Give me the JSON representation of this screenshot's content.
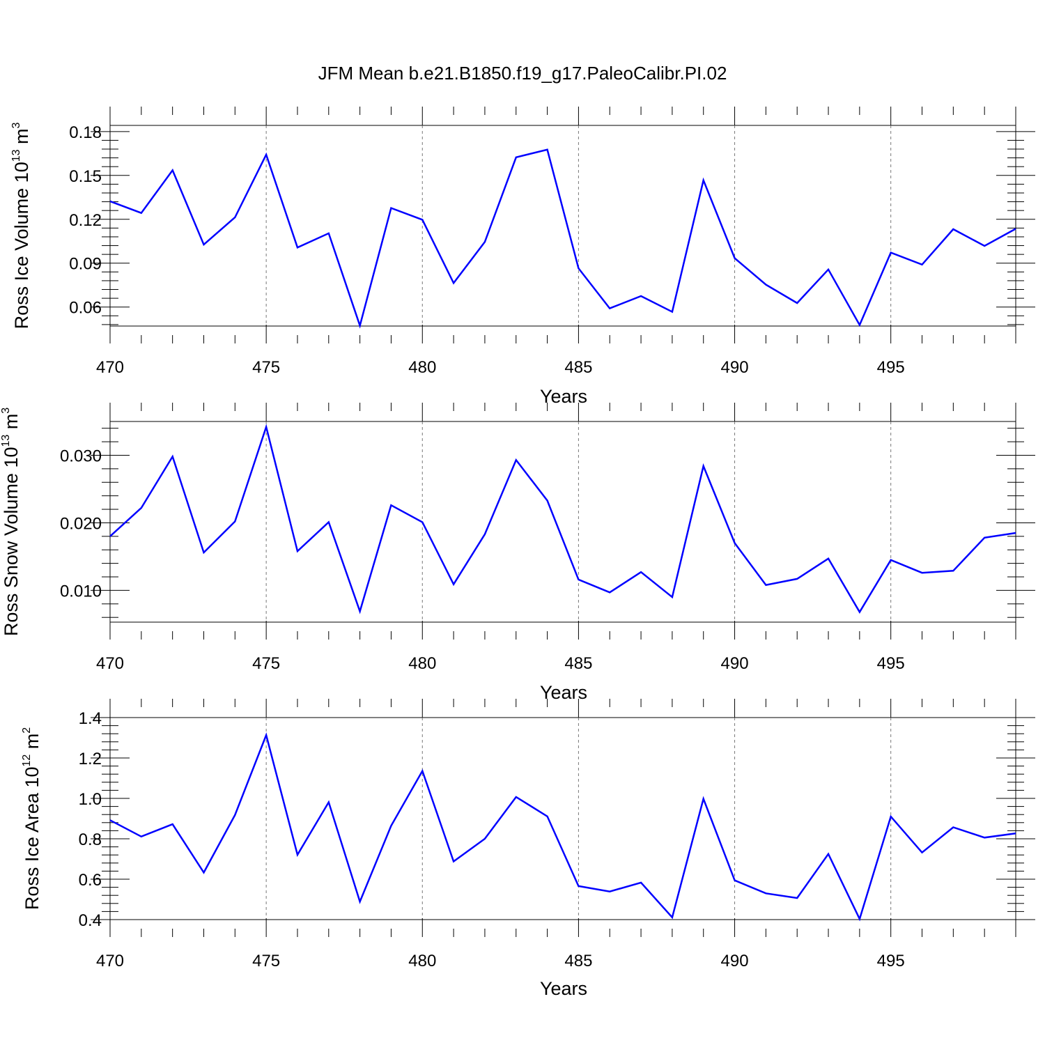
{
  "title": "JFM Mean b.e21.B1850.f19_g17.PaleoCalibr.PI.02",
  "colors": {
    "line": "#0000ff",
    "axis": "#000000",
    "grid": "#777777"
  },
  "chart_data": [
    {
      "type": "line",
      "title": "JFM Mean b.e21.B1850.f19_g17.PaleoCalibr.PI.02",
      "xlabel": "Years",
      "ylabel": {
        "text": "Ross Ice Volume 10",
        "exp": "13",
        "unit": " m",
        "unit_exp": "3"
      },
      "xlim": [
        470,
        499
      ],
      "ylim": [
        0.047,
        0.1842
      ],
      "xticks": [
        470,
        475,
        480,
        485,
        490,
        495
      ],
      "xtick_labels": [
        "470",
        "475",
        "480",
        "485",
        "490",
        "495"
      ],
      "yticks": [
        0.06,
        0.09,
        0.12,
        0.15,
        0.18
      ],
      "ytick_labels": [
        "0.06",
        "0.09",
        "0.12",
        "0.15",
        "0.18"
      ],
      "grid": "x-dashed",
      "series": [
        {
          "name": "Ross Ice Volume",
          "x": [
            470,
            471,
            472,
            473,
            474,
            475,
            476,
            477,
            478,
            479,
            480,
            481,
            482,
            483,
            484,
            485,
            486,
            487,
            488,
            489,
            490,
            491,
            492,
            493,
            494,
            495,
            496,
            497,
            498,
            499
          ],
          "values": [
            0.1323,
            0.1243,
            0.1535,
            0.1027,
            0.1213,
            0.1642,
            0.1007,
            0.1104,
            0.0473,
            0.1277,
            0.1197,
            0.0764,
            0.1045,
            0.1624,
            0.1676,
            0.0865,
            0.0591,
            0.0675,
            0.0567,
            0.1467,
            0.0934,
            0.0753,
            0.0627,
            0.0857,
            0.0477,
            0.0972,
            0.089,
            0.1132,
            0.1018,
            0.1135
          ]
        }
      ]
    },
    {
      "type": "line",
      "xlabel": "Years",
      "ylabel": {
        "text": "Ross Snow Volume 10",
        "exp": "13",
        "unit": " m",
        "unit_exp": "3"
      },
      "xlim": [
        470,
        499
      ],
      "ylim": [
        0.0053,
        0.035
      ],
      "xticks": [
        470,
        475,
        480,
        485,
        490,
        495
      ],
      "xtick_labels": [
        "470",
        "475",
        "480",
        "485",
        "490",
        "495"
      ],
      "yticks": [
        0.01,
        0.02,
        0.03
      ],
      "ytick_labels": [
        "0.010",
        "0.020",
        "0.030"
      ],
      "grid": "x-dashed",
      "series": [
        {
          "name": "Ross Snow Volume",
          "x": [
            470,
            471,
            472,
            473,
            474,
            475,
            476,
            477,
            478,
            479,
            480,
            481,
            482,
            483,
            484,
            485,
            486,
            487,
            488,
            489,
            490,
            491,
            492,
            493,
            494,
            495,
            496,
            497,
            498,
            499
          ],
          "values": [
            0.018,
            0.0222,
            0.0298,
            0.0156,
            0.0202,
            0.0342,
            0.0158,
            0.0201,
            0.0069,
            0.0226,
            0.0201,
            0.0109,
            0.0183,
            0.0293,
            0.0233,
            0.0116,
            0.0097,
            0.0127,
            0.009,
            0.0284,
            0.017,
            0.0108,
            0.0117,
            0.0147,
            0.0068,
            0.0145,
            0.0126,
            0.0129,
            0.0178,
            0.0185
          ]
        }
      ]
    },
    {
      "type": "line",
      "xlabel": "Years",
      "ylabel": {
        "text": "Ross Ice Area 10",
        "exp": "12",
        "unit": " m",
        "unit_exp": "2"
      },
      "xlim": [
        470,
        499
      ],
      "ylim": [
        0.4,
        1.4
      ],
      "xticks": [
        470,
        475,
        480,
        485,
        490,
        495
      ],
      "xtick_labels": [
        "470",
        "475",
        "480",
        "485",
        "490",
        "495"
      ],
      "yticks": [
        0.4,
        0.6,
        0.8,
        1.0,
        1.2,
        1.4
      ],
      "ytick_labels": [
        "0.4",
        "0.6",
        "0.8",
        "1.0",
        "1.2",
        "1.4"
      ],
      "grid": "x-dashed",
      "series": [
        {
          "name": "Ross Ice Area",
          "x": [
            470,
            471,
            472,
            473,
            474,
            475,
            476,
            477,
            478,
            479,
            480,
            481,
            482,
            483,
            484,
            485,
            486,
            487,
            488,
            489,
            490,
            491,
            492,
            493,
            494,
            495,
            496,
            497,
            498,
            499
          ],
          "values": [
            0.892,
            0.811,
            0.872,
            0.633,
            0.918,
            1.313,
            0.721,
            0.981,
            0.489,
            0.864,
            1.136,
            0.688,
            0.8,
            1.007,
            0.911,
            0.566,
            0.539,
            0.583,
            0.411,
            0.998,
            0.594,
            0.53,
            0.507,
            0.725,
            0.403,
            0.91,
            0.732,
            0.857,
            0.806,
            0.827
          ]
        }
      ]
    }
  ]
}
